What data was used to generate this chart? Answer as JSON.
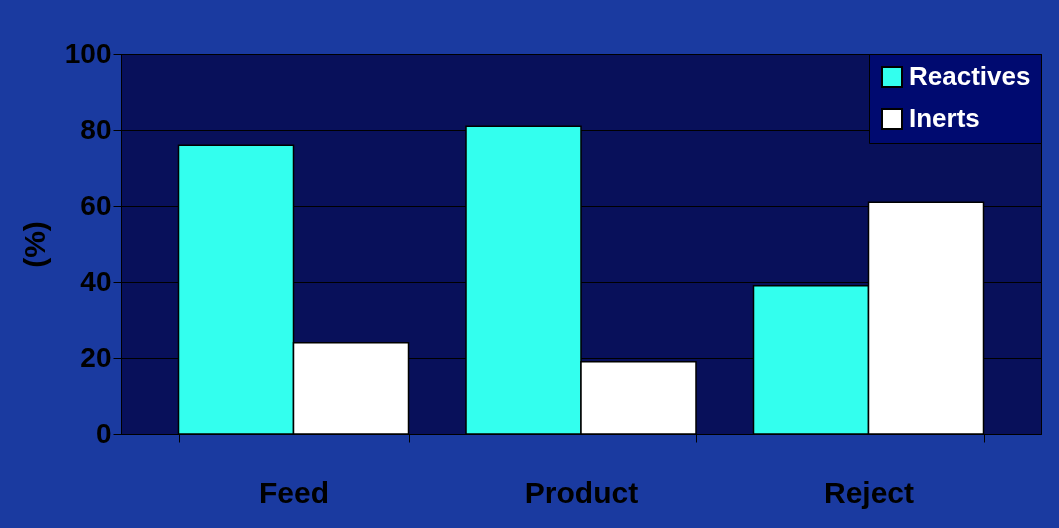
{
  "chart_data": {
    "type": "bar",
    "ylabel": "(%)",
    "categories": [
      "Feed",
      "Product",
      "Reject"
    ],
    "series": [
      {
        "name": "Reactives",
        "color": "#33ffee",
        "values": [
          76,
          81,
          39
        ]
      },
      {
        "name": "Inerts",
        "color": "#ffffff",
        "values": [
          24,
          19,
          61
        ]
      }
    ],
    "ylim": [
      0,
      100
    ],
    "yticks": [
      0,
      20,
      40,
      60,
      80,
      100
    ],
    "grid": "y",
    "legend": "top right"
  }
}
